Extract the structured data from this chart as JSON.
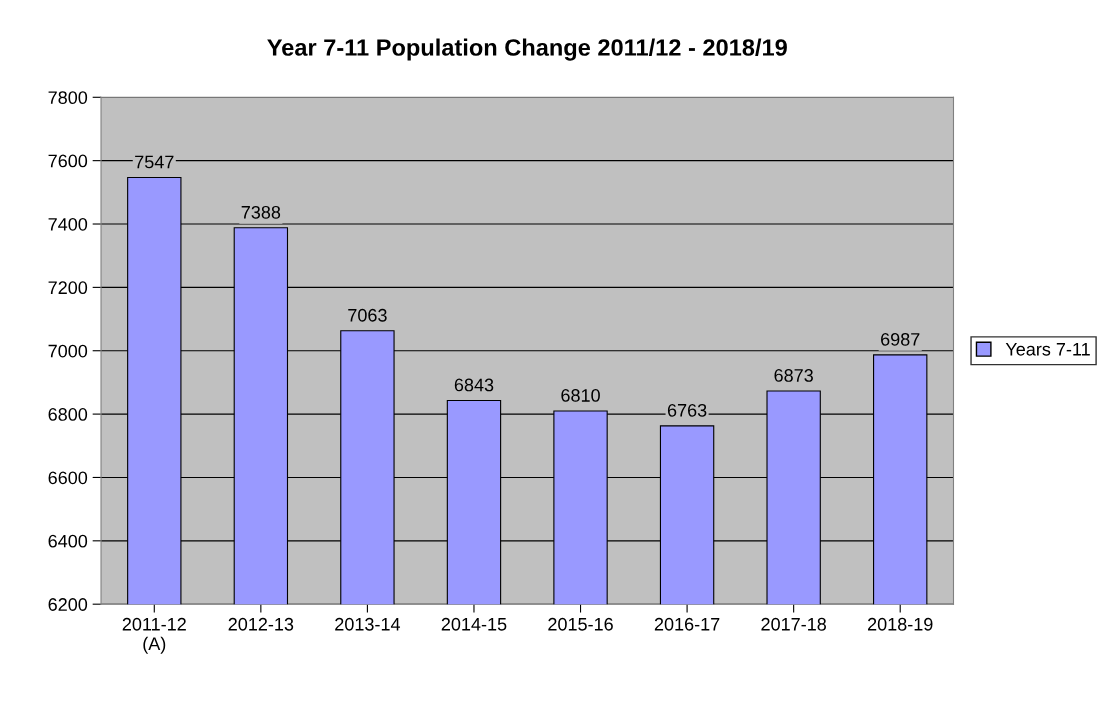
{
  "chart_data": {
    "type": "bar",
    "title": "Year 7-11 Population Change 2011/12 - 2018/19",
    "categories": [
      "2011-12\n(A)",
      "2012-13",
      "2013-14",
      "2014-15",
      "2015-16",
      "2016-17",
      "2017-18",
      "2018-19"
    ],
    "series": [
      {
        "name": "Years 7-11",
        "color": "#9999ff",
        "values": [
          7547,
          7388,
          7063,
          6843,
          6810,
          6763,
          6873,
          6987
        ]
      }
    ],
    "ylim": [
      6200,
      7800
    ],
    "yticks": [
      6200,
      6400,
      6600,
      6800,
      7000,
      7200,
      7400,
      7600,
      7800
    ],
    "grid": "y",
    "legend": "right",
    "data_labels": true
  }
}
